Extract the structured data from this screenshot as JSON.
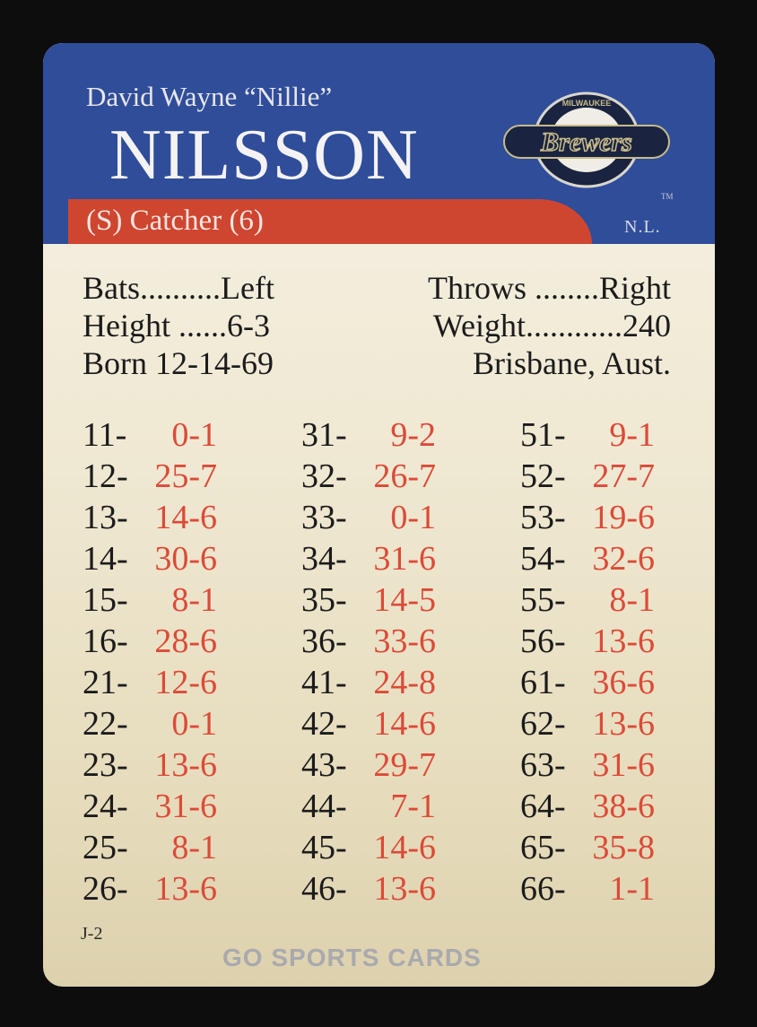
{
  "player": {
    "full_name": "David Wayne “Nillie”",
    "last_name": "NILSSON",
    "position": "(S) Catcher (6)",
    "league": "N.L."
  },
  "team": {
    "logo_text": "Brewers",
    "logo_arc": "MILWAUKEE",
    "trademark": "TM",
    "colors": {
      "header": "#2f4d99",
      "bar": "#cf4630",
      "result": "#dc4a38"
    }
  },
  "stats": {
    "bats": "Bats..........Left",
    "throws": "Throws ........Right",
    "height": "Height ......6-3",
    "weight": "Weight............240",
    "born": "Born 12-14-69",
    "birthplace": "Brisbane, Aust."
  },
  "chart": [
    [
      [
        "11-",
        "0-1"
      ],
      [
        "12-",
        "25-7"
      ],
      [
        "13-",
        "14-6"
      ],
      [
        "14-",
        "30-6"
      ],
      [
        "15-",
        "8-1"
      ],
      [
        "16-",
        "28-6"
      ],
      [
        "21-",
        "12-6"
      ],
      [
        "22-",
        "0-1"
      ],
      [
        "23-",
        "13-6"
      ],
      [
        "24-",
        "31-6"
      ],
      [
        "25-",
        "8-1"
      ],
      [
        "26-",
        "13-6"
      ]
    ],
    [
      [
        "31-",
        "9-2"
      ],
      [
        "32-",
        "26-7"
      ],
      [
        "33-",
        "0-1"
      ],
      [
        "34-",
        "31-6"
      ],
      [
        "35-",
        "14-5"
      ],
      [
        "36-",
        "33-6"
      ],
      [
        "41-",
        "24-8"
      ],
      [
        "42-",
        "14-6"
      ],
      [
        "43-",
        "29-7"
      ],
      [
        "44-",
        "7-1"
      ],
      [
        "45-",
        "14-6"
      ],
      [
        "46-",
        "13-6"
      ]
    ],
    [
      [
        "51-",
        "9-1"
      ],
      [
        "52-",
        "27-7"
      ],
      [
        "53-",
        "19-6"
      ],
      [
        "54-",
        "32-6"
      ],
      [
        "55-",
        "8-1"
      ],
      [
        "56-",
        "13-6"
      ],
      [
        "61-",
        "36-6"
      ],
      [
        "62-",
        "13-6"
      ],
      [
        "63-",
        "31-6"
      ],
      [
        "64-",
        "38-6"
      ],
      [
        "65-",
        "35-8"
      ],
      [
        "66-",
        "1-1"
      ]
    ]
  ],
  "card_code": "J-2",
  "watermark": "GO SPORTS CARDS"
}
